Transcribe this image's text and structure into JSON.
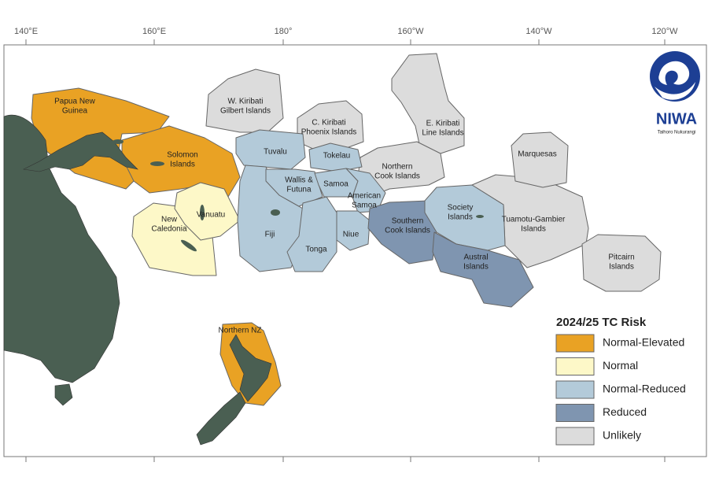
{
  "longitudes": [
    "140°E",
    "160°E",
    "180°",
    "160°W",
    "140°W",
    "120°W"
  ],
  "logo": {
    "name": "NIWA",
    "tagline": "Taihoro Nukurangi"
  },
  "legend": {
    "title": "2024/25 TC Risk",
    "items": [
      {
        "name": "Normal-Elevated",
        "color": "#e9a224"
      },
      {
        "name": "Normal",
        "color": "#fdf8c8"
      },
      {
        "name": "Normal-Reduced",
        "color": "#b3cad9"
      },
      {
        "name": "Reduced",
        "color": "#7f95b0"
      },
      {
        "name": "Unlikely",
        "color": "#dcdcdc"
      }
    ]
  },
  "regions": [
    {
      "label": [
        "Papua New",
        "Guinea"
      ],
      "risk": "Normal-Elevated"
    },
    {
      "label": [
        "Solomon",
        "Islands"
      ],
      "risk": "Normal-Elevated"
    },
    {
      "label": [
        "New",
        "Caledonia"
      ],
      "risk": "Normal"
    },
    {
      "label": [
        "Vanuatu"
      ],
      "risk": "Normal"
    },
    {
      "label": [
        "W. Kiribati",
        "Gilbert Islands"
      ],
      "risk": "Unlikely"
    },
    {
      "label": [
        "C. Kiribati",
        "Phoenix Islands"
      ],
      "risk": "Unlikely"
    },
    {
      "label": [
        "E. Kiribati",
        "Line Islands"
      ],
      "risk": "Unlikely"
    },
    {
      "label": [
        "Northern",
        "Cook Islands"
      ],
      "risk": "Unlikely"
    },
    {
      "label": [
        "Tuvalu"
      ],
      "risk": "Normal-Reduced"
    },
    {
      "label": [
        "Tokelau"
      ],
      "risk": "Normal-Reduced"
    },
    {
      "label": [
        "Fiji"
      ],
      "risk": "Normal-Reduced"
    },
    {
      "label": [
        "Wallis &",
        "Futuna"
      ],
      "risk": "Normal-Reduced"
    },
    {
      "label": [
        "Samoa"
      ],
      "risk": "Normal-Reduced"
    },
    {
      "label": [
        "American",
        "Samoa"
      ],
      "risk": "Normal-Reduced"
    },
    {
      "label": [
        "Tonga"
      ],
      "risk": "Normal-Reduced"
    },
    {
      "label": [
        "Niue"
      ],
      "risk": "Normal-Reduced"
    },
    {
      "label": [
        "Southern",
        "Cook Islands"
      ],
      "risk": "Reduced"
    },
    {
      "label": [
        "Tuamotu-Gambier",
        "Islands"
      ],
      "risk": "Unlikely"
    },
    {
      "label": [
        "Society",
        "Islands"
      ],
      "risk": "Normal-Reduced"
    },
    {
      "label": [
        "Austral",
        "Islands"
      ],
      "risk": "Reduced"
    },
    {
      "label": [
        "Marquesas"
      ],
      "risk": "Unlikely"
    },
    {
      "label": [
        "Pitcairn",
        "Islands"
      ],
      "risk": "Unlikely"
    },
    {
      "label": [
        "Northern NZ"
      ],
      "risk": "Normal-Elevated"
    }
  ]
}
